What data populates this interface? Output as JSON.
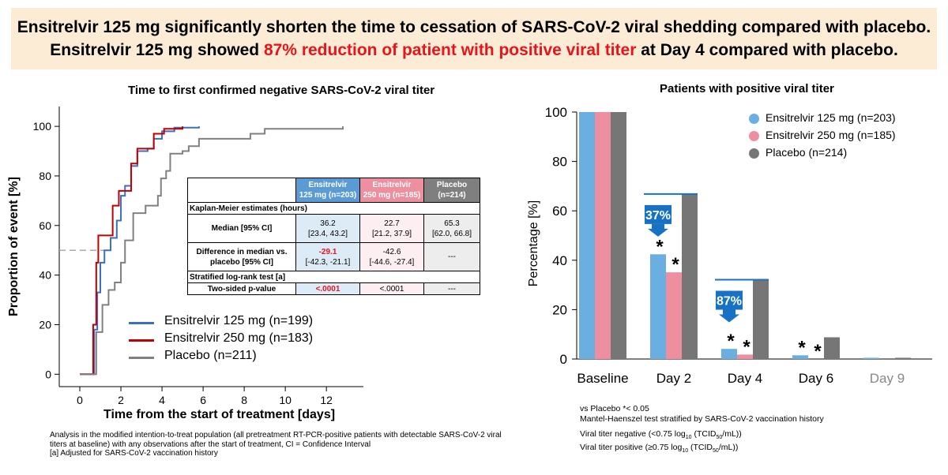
{
  "banner": {
    "line1": "Ensitrelvir 125 mg significantly shorten the time to cessation of SARS-CoV-2 viral shedding compared with placebo.",
    "line2_pre": "Ensitrelvir 125 mg showed ",
    "line2_highlight": "87% reduction of patient with positive viral titer",
    "line2_post": " at Day 4 compared with placebo.",
    "highlight_color": "#e8141b",
    "background": "#fcecd6"
  },
  "chart_data": [
    {
      "type": "line",
      "title": "Time to first confirmed negative SARS-CoV-2 viral titer",
      "xlabel": "Time from the start of treatment [days]",
      "ylabel": "Proportion of event [%]",
      "xlim": [
        -1,
        13.8
      ],
      "ylim": [
        -5,
        108
      ],
      "xticks": [
        "0",
        "2",
        "4",
        "6",
        "8",
        "10",
        "12"
      ],
      "yticks": [
        "0",
        "20",
        "40",
        "60",
        "80",
        "100"
      ],
      "reference_line_y": 50,
      "series": [
        {
          "name": "Ensitrelvir 125 mg (n=199)",
          "color": "#3a6fc4",
          "points": [
            [
              0,
              0
            ],
            [
              0.5,
              0
            ],
            [
              0.7,
              18
            ],
            [
              0.85,
              33
            ],
            [
              1,
              45
            ],
            [
              1.2,
              50
            ],
            [
              1.5,
              55
            ],
            [
              1.8,
              62
            ],
            [
              2,
              72
            ],
            [
              2.2,
              76
            ],
            [
              2.5,
              84
            ],
            [
              2.8,
              90
            ],
            [
              3.3,
              91
            ],
            [
              3.6,
              95
            ],
            [
              4,
              98
            ],
            [
              4.6,
              99.5
            ],
            [
              5.8,
              100
            ]
          ]
        },
        {
          "name": "Ensitrelvir 250 mg (n=183)",
          "color": "#c00000",
          "points": [
            [
              0,
              0
            ],
            [
              0.5,
              0
            ],
            [
              0.65,
              20
            ],
            [
              0.8,
              45
            ],
            [
              0.9,
              56
            ],
            [
              1.4,
              56
            ],
            [
              1.6,
              68
            ],
            [
              1.9,
              74
            ],
            [
              2.3,
              74
            ],
            [
              2.5,
              85
            ],
            [
              2.8,
              91
            ],
            [
              3.4,
              91
            ],
            [
              3.6,
              97
            ],
            [
              4.1,
              99
            ],
            [
              5,
              100
            ]
          ]
        },
        {
          "name": "Placebo (n=211)",
          "color": "#808080",
          "points": [
            [
              0,
              0
            ],
            [
              0.5,
              0
            ],
            [
              0.8,
              17
            ],
            [
              1.1,
              28
            ],
            [
              1.4,
              34
            ],
            [
              1.7,
              37
            ],
            [
              2,
              45
            ],
            [
              2.2,
              54
            ],
            [
              2.6,
              65
            ],
            [
              3.2,
              68
            ],
            [
              3.8,
              72
            ],
            [
              3.95,
              79
            ],
            [
              4.2,
              82
            ],
            [
              4.4,
              89
            ],
            [
              5,
              90
            ],
            [
              5.3,
              92
            ],
            [
              5.8,
              95
            ],
            [
              8.3,
              97
            ],
            [
              9,
              99
            ],
            [
              12.8,
              100
            ]
          ]
        }
      ]
    },
    {
      "type": "bar",
      "title": "Patients with positive viral titer",
      "xlabel": "",
      "ylabel": "Percentage [%]",
      "ylim": [
        0,
        100
      ],
      "yticks": [
        "0",
        "20",
        "40",
        "60",
        "80",
        "100"
      ],
      "categories": [
        "Baseline",
        "Day 2",
        "Day 4",
        "Day 6",
        "Day 9"
      ],
      "series": [
        {
          "name": "Ensitrelvir 125 mg (n=203)",
          "color": "#6baee2",
          "values": [
            100,
            42.4,
            4.1,
            1.5,
            0.5
          ]
        },
        {
          "name": "Ensitrelvir 250 mg (n=185)",
          "color": "#ee8fa0",
          "values": [
            100,
            35.1,
            1.8,
            0,
            0
          ]
        },
        {
          "name": "Placebo (n=214)",
          "color": "#767676",
          "values": [
            100,
            66.8,
            32.1,
            8.8,
            0.5
          ]
        }
      ],
      "significance_marker": "*",
      "significant": [
        [
          false,
          false,
          false
        ],
        [
          true,
          true,
          false
        ],
        [
          true,
          true,
          false
        ],
        [
          true,
          true,
          false
        ],
        [
          false,
          false,
          false
        ]
      ],
      "reductions": [
        {
          "category": "Day 2",
          "label": "37%"
        },
        {
          "category": "Day 4",
          "label": "87%"
        }
      ],
      "reduction_arrow_color": "#1772c4"
    }
  ],
  "km_table": {
    "col_headers": [
      "Ensitrelvir\n125 mg (n=203)",
      "Ensitrelvir\n250 mg (n=185)",
      "Placebo\n(n=214)"
    ],
    "section1": "Kaplan-Meier estimates (hours)",
    "median_label": "Median [95% CI]",
    "median": [
      {
        "value": "36.2",
        "ci": "[23.4, 43.2]"
      },
      {
        "value": "22.7",
        "ci": "[21.2, 37.9]"
      },
      {
        "value": "65.3",
        "ci": "[62.0, 66.8]"
      }
    ],
    "diff_label": "Difference in median vs. placebo  [95% CI]",
    "diff": [
      {
        "value": "-29.1",
        "ci": "[-42.3, -21.1]"
      },
      {
        "value": "-42.6",
        "ci": "[-44.6, -27.4]"
      },
      {
        "value": "---",
        "ci": ""
      }
    ],
    "section2": "Stratified log-rank test [a]",
    "pvalue_label": "Two-sided p-value",
    "pvalue": [
      "<.0001",
      "<.0001",
      "---"
    ]
  },
  "footnote_left": [
    "Analysis in the modified intention-to-treat population (all pretreatment RT-PCR-positive patients with detectable SARS-CoV-2 viral",
    "titers at baseline) with any observations after the start of treatment, CI = Confidence Interval",
    "[a] Adjusted for SARS-CoV-2 vaccination history"
  ],
  "footnote_right": {
    "vs_placebo": "vs Placebo *< 0.05",
    "test": "Mantel-Haenszel test stratified by SARS-CoV-2 vaccination history",
    "neg_pre": "Viral titer negative (<0.75 log",
    "pos_pre": "Viral titer positive (≥0.75 log",
    "log_base": "10",
    "tcid_pre": " (TCID",
    "tcid_sub": "50",
    "tcid_post": "/mL))"
  }
}
